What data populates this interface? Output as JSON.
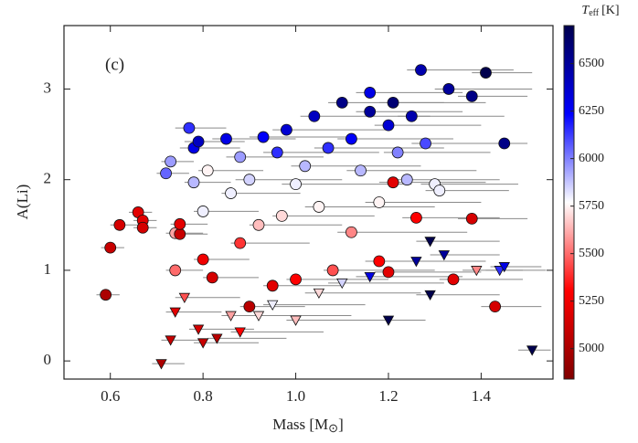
{
  "chart_data": {
    "type": "scatter",
    "annotation": "(c)",
    "x_label": {
      "text": "Mass [M",
      "subscript": "⊙",
      "end": "]"
    },
    "y_label": "A(Li)",
    "colorbar_label": {
      "symbol": "T",
      "subscript": "eff",
      "unit": "[K]"
    },
    "xlim": [
      0.5,
      1.555
    ],
    "ylim": [
      -0.2,
      3.7
    ],
    "xticks": [
      0.6,
      0.8,
      {
        "value": 1,
        "label": "1.0"
      },
      1.2,
      1.4
    ],
    "yticks": [
      0,
      1,
      2,
      3
    ],
    "clim": [
      4840,
      6700
    ],
    "cticks": [
      5000,
      5250,
      5500,
      5750,
      6000,
      6250,
      6500
    ],
    "x": [
      0.59,
      0.6,
      0.62,
      0.66,
      0.67,
      0.67,
      0.72,
      0.73,
      0.74,
      0.74,
      0.75,
      0.75,
      0.77,
      0.78,
      0.79,
      0.78,
      0.8,
      0.8,
      0.81,
      0.82,
      0.85,
      0.86,
      0.88,
      0.88,
      0.9,
      0.9,
      0.92,
      0.93,
      0.95,
      0.96,
      0.97,
      0.98,
      1.0,
      1.0,
      1.02,
      1.04,
      1.05,
      1.07,
      1.08,
      1.1,
      1.12,
      1.12,
      1.14,
      1.16,
      1.18,
      1.18,
      1.2,
      1.21,
      1.22,
      1.24,
      1.25,
      1.27,
      1.28,
      1.3,
      1.31,
      1.33,
      1.34,
      1.38,
      1.38,
      1.41,
      1.45,
      1.43,
      1.21,
      1.26,
      1.2,
      1.16,
      0.71,
      0.73,
      0.74,
      0.76,
      0.79,
      0.8,
      0.83,
      0.86,
      0.88,
      0.92,
      0.95,
      1.0,
      1.05,
      1.1,
      1.2,
      1.29,
      1.29,
      1.32,
      1.39,
      1.44,
      1.45,
      1.51,
      1.16,
      1.26
    ],
    "y": [
      0.73,
      1.25,
      1.5,
      1.64,
      1.55,
      1.47,
      2.07,
      2.2,
      1.41,
      1.0,
      1.4,
      1.51,
      2.57,
      2.35,
      2.42,
      1.97,
      1.65,
      1.12,
      2.1,
      0.92,
      2.45,
      1.85,
      2.25,
      1.3,
      0.6,
      2.0,
      1.5,
      2.47,
      0.83,
      2.3,
      1.6,
      2.55,
      1.95,
      0.9,
      2.15,
      2.7,
      1.7,
      2.35,
      1.0,
      2.85,
      2.45,
      1.42,
      2.1,
      2.75,
      1.75,
      1.1,
      2.6,
      2.85,
      2.3,
      2.0,
      2.7,
      3.21,
      2.4,
      1.95,
      1.88,
      3.0,
      0.9,
      2.92,
      1.57,
      3.18,
      2.4,
      0.6,
      1.97,
      1.58,
      0.98,
      2.96,
      -0.03,
      0.23,
      0.54,
      0.7,
      0.35,
      0.2,
      0.25,
      0.5,
      0.32,
      0.5,
      0.62,
      0.45,
      0.75,
      0.86,
      0.45,
      0.73,
      1.32,
      1.17,
      1.0,
      1.0,
      1.04,
      0.12,
      0.93,
      1.1
    ],
    "teff": [
      5000,
      5100,
      5150,
      5200,
      5200,
      5150,
      6050,
      5950,
      5600,
      5500,
      5100,
      5200,
      6150,
      6300,
      6400,
      5900,
      5800,
      5250,
      5750,
      5150,
      6300,
      5800,
      5950,
      5400,
      5050,
      5850,
      5650,
      6250,
      5200,
      6150,
      5700,
      6350,
      5800,
      5300,
      5900,
      6400,
      5750,
      6150,
      5450,
      6550,
      6250,
      5550,
      5900,
      6500,
      5750,
      5300,
      6350,
      6600,
      6000,
      5900,
      6450,
      6450,
      6100,
      5800,
      5800,
      6500,
      5200,
      6550,
      5150,
      6700,
      6550,
      5150,
      5200,
      5300,
      5200,
      6300,
      5000,
      5100,
      5200,
      5450,
      5150,
      5100,
      5050,
      5600,
      5300,
      5700,
      5800,
      5650,
      5700,
      5850,
      6700,
      6700,
      6700,
      6500,
      5550,
      6150,
      6300,
      6700,
      6300,
      6500
    ],
    "upper_limit": [
      false,
      false,
      false,
      false,
      false,
      false,
      false,
      false,
      false,
      false,
      false,
      false,
      false,
      false,
      false,
      false,
      false,
      false,
      false,
      false,
      false,
      false,
      false,
      false,
      false,
      false,
      false,
      false,
      false,
      false,
      false,
      false,
      false,
      false,
      false,
      false,
      false,
      false,
      false,
      false,
      false,
      false,
      false,
      false,
      false,
      false,
      false,
      false,
      false,
      false,
      false,
      false,
      false,
      false,
      false,
      false,
      false,
      false,
      false,
      false,
      false,
      false,
      false,
      false,
      false,
      false,
      true,
      true,
      true,
      true,
      true,
      true,
      true,
      true,
      true,
      true,
      true,
      true,
      true,
      true,
      true,
      true,
      true,
      true,
      true,
      true,
      true,
      true,
      true,
      true
    ],
    "xerr_lo": [
      0.02,
      0.02,
      0.02,
      0.02,
      0.02,
      0.02,
      0.02,
      0.02,
      0.02,
      0.02,
      0.02,
      0.02,
      0.03,
      0.03,
      0.03,
      0.02,
      0.02,
      0.02,
      0.02,
      0.02,
      0.03,
      0.02,
      0.03,
      0.02,
      0.02,
      0.03,
      0.02,
      0.03,
      0.02,
      0.03,
      0.02,
      0.03,
      0.03,
      0.02,
      0.03,
      0.03,
      0.03,
      0.03,
      0.02,
      0.03,
      0.03,
      0.03,
      0.03,
      0.03,
      0.03,
      0.03,
      0.03,
      0.03,
      0.03,
      0.03,
      0.03,
      0.03,
      0.03,
      0.03,
      0.03,
      0.03,
      0.03,
      0.03,
      0.03,
      0.03,
      0.03,
      0.03,
      0.03,
      0.03,
      0.03,
      0.03,
      0.02,
      0.02,
      0.02,
      0.02,
      0.02,
      0.02,
      0.02,
      0.02,
      0.02,
      0.02,
      0.02,
      0.02,
      0.03,
      0.03,
      0.03,
      0.03,
      0.03,
      0.03,
      0.03,
      0.03,
      0.03,
      0.03,
      0.03,
      0.03
    ],
    "xerr_hi": [
      0.03,
      0.03,
      0.04,
      0.03,
      0.03,
      0.03,
      0.05,
      0.05,
      0.06,
      0.06,
      0.06,
      0.06,
      0.08,
      0.1,
      0.1,
      0.08,
      0.12,
      0.1,
      0.12,
      0.1,
      0.15,
      0.15,
      0.18,
      0.15,
      0.12,
      0.2,
      0.18,
      0.2,
      0.15,
      0.22,
      0.2,
      0.22,
      0.25,
      0.2,
      0.25,
      0.25,
      0.25,
      0.25,
      0.22,
      0.22,
      0.22,
      0.25,
      0.25,
      0.2,
      0.22,
      0.22,
      0.2,
      0.2,
      0.2,
      0.2,
      0.2,
      0.2,
      0.18,
      0.18,
      0.15,
      0.18,
      0.15,
      0.12,
      0.12,
      0.1,
      0.05,
      0.1,
      0.2,
      0.18,
      0.2,
      0.2,
      0.05,
      0.06,
      0.1,
      0.12,
      0.12,
      0.12,
      0.15,
      0.15,
      0.18,
      0.2,
      0.2,
      0.22,
      0.22,
      0.22,
      0.08,
      0.15,
      0.15,
      0.12,
      0.1,
      0.1,
      0.08,
      0.04,
      0.2,
      0.15
    ]
  }
}
